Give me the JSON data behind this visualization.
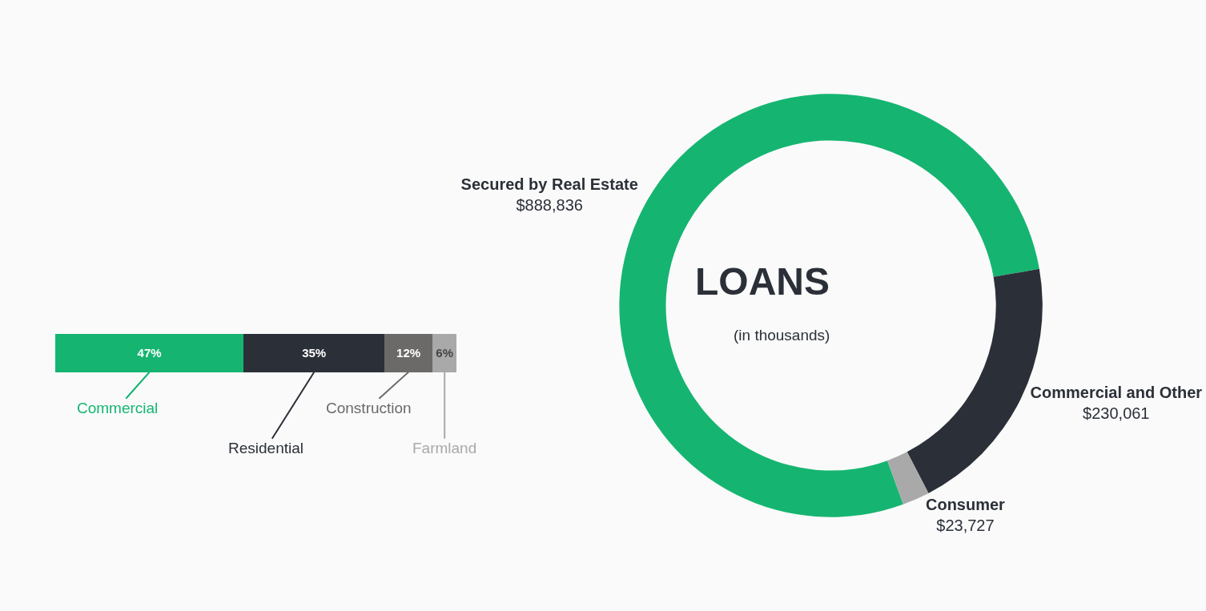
{
  "chart_data": [
    {
      "type": "bar",
      "stacked": true,
      "orientation": "horizontal",
      "categories": [
        null
      ],
      "legend": "bottom",
      "series": [
        {
          "name": "Commercial",
          "color": "#15b571",
          "values": [
            47
          ],
          "value_labels": [
            "47%"
          ]
        },
        {
          "name": "Residential",
          "color": "#2b3038",
          "values": [
            35
          ],
          "value_labels": [
            "35%"
          ]
        },
        {
          "name": "Construction",
          "color": "#6b6a68",
          "values": [
            12
          ],
          "value_labels": [
            "12%"
          ]
        },
        {
          "name": "Farmland",
          "color": "#aaa9a9",
          "values": [
            6
          ],
          "value_labels": [
            "6%"
          ]
        }
      ],
      "tick_labels": false
    },
    {
      "type": "donut",
      "title": "LOANS",
      "subtitle": "(in thousands)",
      "legend": false,
      "categories": [
        "Secured by Real Estate",
        "Commercial and Other",
        "Consumer"
      ],
      "values": [
        888836,
        230061,
        23727
      ],
      "value_labels": [
        "$888,836",
        "$230,061",
        "$23,727"
      ],
      "colors": [
        "#15b571",
        "#2b3038",
        "#aaa9a9"
      ]
    }
  ]
}
